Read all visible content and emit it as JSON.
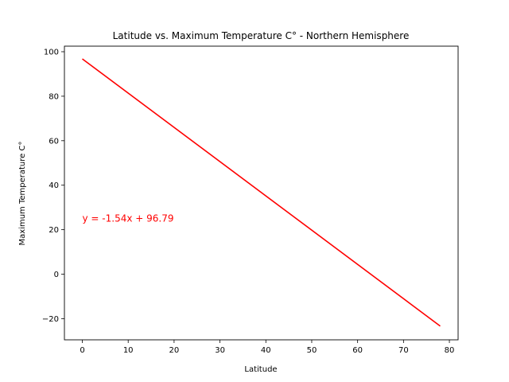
{
  "chart_data": {
    "type": "line",
    "title": "Latitude vs. Maximum Temperature C° - Northern Hemisphere",
    "xlabel": "Latitude",
    "ylabel": "Maximum Temperature C°",
    "xlim": [
      -3.9,
      81.9
    ],
    "ylim": [
      -29.5,
      102.5
    ],
    "xticks": [
      0,
      10,
      20,
      30,
      40,
      50,
      60,
      70,
      80
    ],
    "yticks": [
      -20,
      0,
      20,
      40,
      60,
      80,
      100
    ],
    "grid": false,
    "series": [
      {
        "x": [
          0,
          78
        ],
        "y": [
          96.79,
          -23.33
        ],
        "color": "#ff0000"
      }
    ],
    "annotations": [
      {
        "text": "y = -1.54x + 96.79",
        "x": 0,
        "y": 25,
        "color": "#ff0000"
      }
    ]
  }
}
